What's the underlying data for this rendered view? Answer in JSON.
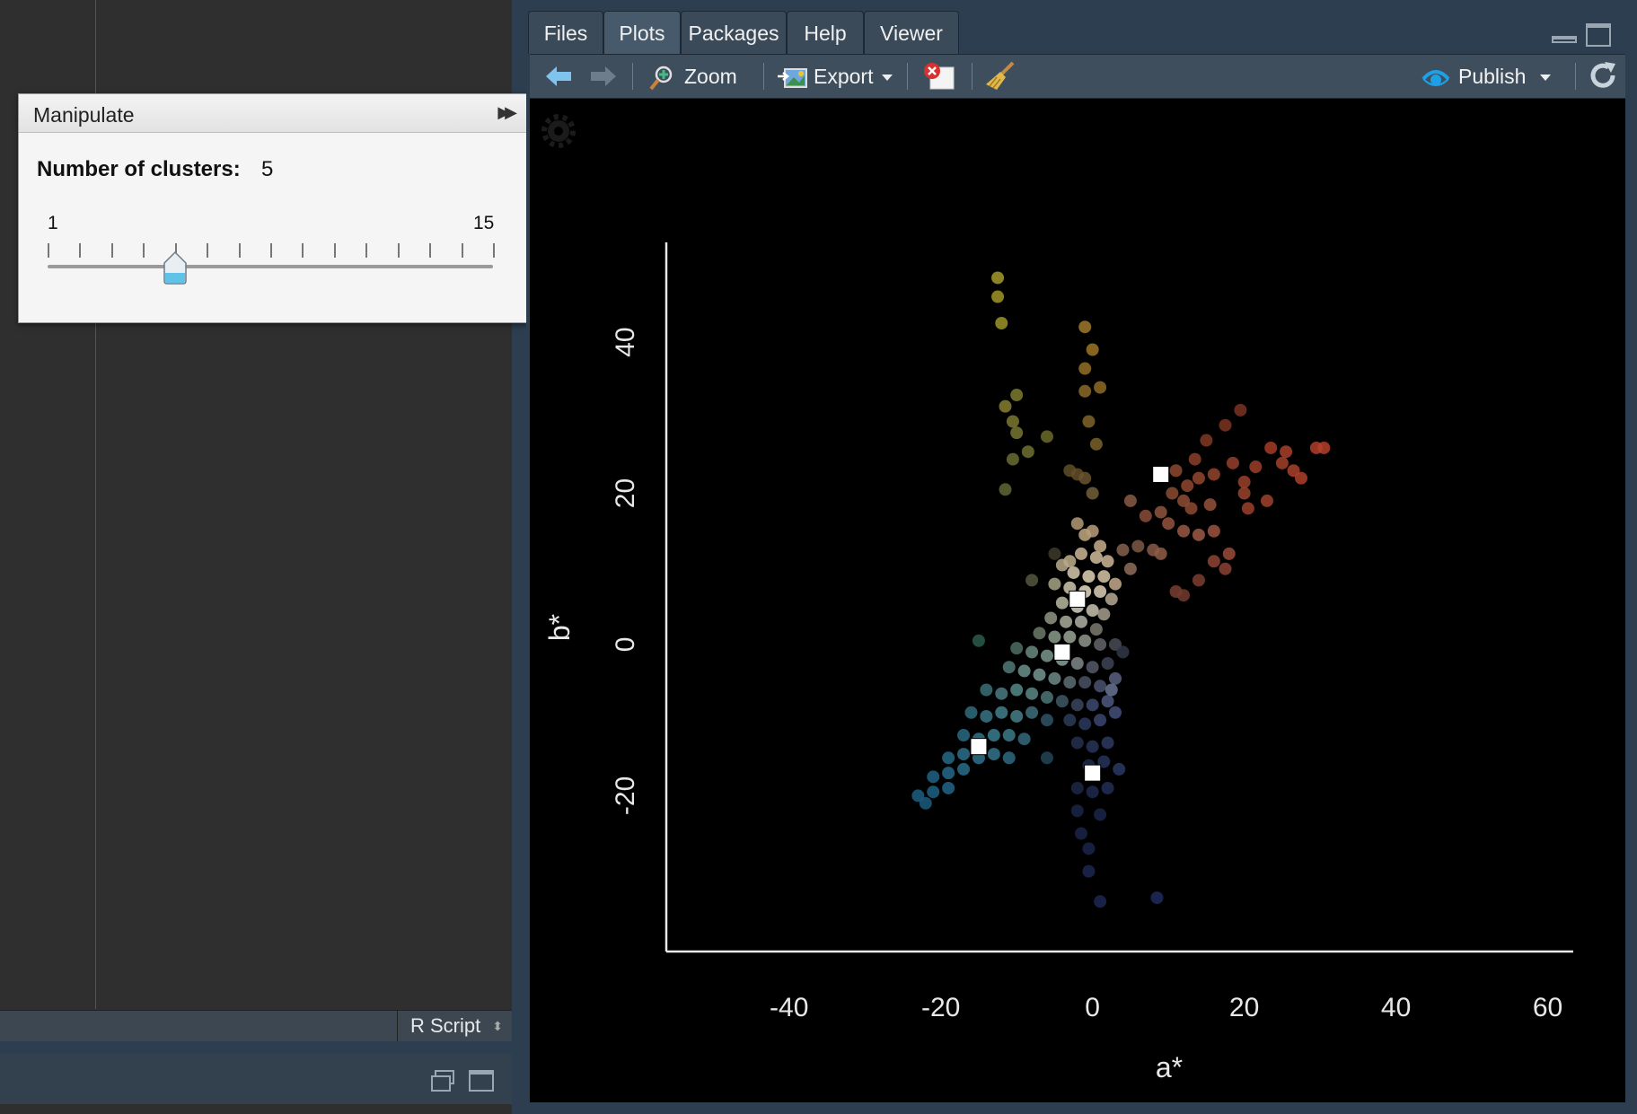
{
  "editor": {
    "file_type": "R Script"
  },
  "manipulate": {
    "title": "Manipulate",
    "control_label": "Number of clusters:",
    "control_value": "5",
    "slider_min": "1",
    "slider_max": "15",
    "slider_value": 5
  },
  "tabs": [
    {
      "label": "Files"
    },
    {
      "label": "Plots"
    },
    {
      "label": "Packages"
    },
    {
      "label": "Help"
    },
    {
      "label": "Viewer"
    }
  ],
  "active_tab": "Plots",
  "toolbar": {
    "zoom": "Zoom",
    "export": "Export",
    "publish": "Publish"
  },
  "colors": {
    "accent": "#1ea0e6",
    "plot_bg": "#000000"
  },
  "chart_data": {
    "type": "scatter",
    "xlabel": "a*",
    "ylabel": "b*",
    "xlim": [
      -55,
      61
    ],
    "ylim": [
      -38,
      52
    ],
    "x_ticks": [
      -40,
      -20,
      0,
      20,
      40,
      60
    ],
    "y_ticks": [
      -20,
      0,
      20,
      40
    ],
    "grid": false,
    "centers": [
      {
        "x": 9,
        "y": 22.5
      },
      {
        "x": -2,
        "y": 6
      },
      {
        "x": -4,
        "y": -1
      },
      {
        "x": -15,
        "y": -13.5
      },
      {
        "x": 0,
        "y": -17
      }
    ],
    "points": [
      {
        "x": -12.5,
        "y": 48.5,
        "c": "#a39a2a"
      },
      {
        "x": -12.5,
        "y": 46,
        "c": "#a09527"
      },
      {
        "x": -12,
        "y": 42.5,
        "c": "#9c9428"
      },
      {
        "x": -1,
        "y": 42,
        "c": "#a0782a"
      },
      {
        "x": 0,
        "y": 39,
        "c": "#9c7527"
      },
      {
        "x": -1,
        "y": 36.5,
        "c": "#957026"
      },
      {
        "x": 1,
        "y": 34,
        "c": "#8e6b27"
      },
      {
        "x": -1,
        "y": 33.5,
        "c": "#896a2a"
      },
      {
        "x": -0.5,
        "y": 29.5,
        "c": "#80652a"
      },
      {
        "x": 0.5,
        "y": 26.5,
        "c": "#7a6129"
      },
      {
        "x": -11.5,
        "y": 31.5,
        "c": "#857f30"
      },
      {
        "x": -10,
        "y": 33,
        "c": "#7d7b2e"
      },
      {
        "x": -10.5,
        "y": 29.5,
        "c": "#7a7830"
      },
      {
        "x": -10,
        "y": 28,
        "c": "#777531"
      },
      {
        "x": -6,
        "y": 27.5,
        "c": "#6c6a2c"
      },
      {
        "x": -8.5,
        "y": 25.5,
        "c": "#6e7132"
      },
      {
        "x": -10.5,
        "y": 24.5,
        "c": "#6a6d31"
      },
      {
        "x": -11.5,
        "y": 20.5,
        "c": "#626632"
      },
      {
        "x": -3,
        "y": 23,
        "c": "#5e4f27"
      },
      {
        "x": -2,
        "y": 22.5,
        "c": "#614f28"
      },
      {
        "x": -1,
        "y": 22,
        "c": "#6a5530"
      },
      {
        "x": 0,
        "y": 20,
        "c": "#74603a"
      },
      {
        "x": 19.5,
        "y": 31,
        "c": "#7a3322"
      },
      {
        "x": 17.5,
        "y": 29,
        "c": "#7d3421"
      },
      {
        "x": 15,
        "y": 27,
        "c": "#833a25"
      },
      {
        "x": 23.5,
        "y": 26,
        "c": "#a43b26"
      },
      {
        "x": 25.5,
        "y": 25.5,
        "c": "#a8402a"
      },
      {
        "x": 29.5,
        "y": 26,
        "c": "#b23e2c"
      },
      {
        "x": 30.5,
        "y": 26,
        "c": "#b5402d"
      },
      {
        "x": 26.5,
        "y": 23,
        "c": "#a9412b"
      },
      {
        "x": 27.5,
        "y": 22,
        "c": "#ad3f2b"
      },
      {
        "x": 25,
        "y": 24,
        "c": "#a43f29"
      },
      {
        "x": 21.5,
        "y": 23.5,
        "c": "#9c3f28"
      },
      {
        "x": 18.5,
        "y": 24,
        "c": "#963f2a"
      },
      {
        "x": 13.5,
        "y": 24.5,
        "c": "#8a3f2a"
      },
      {
        "x": 11,
        "y": 23,
        "c": "#8c4a2f"
      },
      {
        "x": 12.5,
        "y": 21,
        "c": "#90482f"
      },
      {
        "x": 14,
        "y": 22,
        "c": "#944730"
      },
      {
        "x": 16,
        "y": 22.5,
        "c": "#93442d"
      },
      {
        "x": 20,
        "y": 21.5,
        "c": "#9a412c"
      },
      {
        "x": 20,
        "y": 20,
        "c": "#9a432d"
      },
      {
        "x": 23,
        "y": 19,
        "c": "#a0432c"
      },
      {
        "x": 20.5,
        "y": 18,
        "c": "#9c412b"
      },
      {
        "x": 10.5,
        "y": 20,
        "c": "#8b4b33"
      },
      {
        "x": 12,
        "y": 19,
        "c": "#8f4d35"
      },
      {
        "x": 13,
        "y": 18,
        "c": "#8c4a34"
      },
      {
        "x": 15.5,
        "y": 18.5,
        "c": "#97513a"
      },
      {
        "x": 5,
        "y": 19,
        "c": "#8a5a45"
      },
      {
        "x": 7,
        "y": 17,
        "c": "#8a4e39"
      },
      {
        "x": 9,
        "y": 17.5,
        "c": "#8e553f"
      },
      {
        "x": 10,
        "y": 16,
        "c": "#93523e"
      },
      {
        "x": 12,
        "y": 15,
        "c": "#9a5843"
      },
      {
        "x": 14,
        "y": 14.5,
        "c": "#9d5b44"
      },
      {
        "x": 16,
        "y": 15,
        "c": "#a0543f"
      },
      {
        "x": 18,
        "y": 12,
        "c": "#9a4b39"
      },
      {
        "x": 16,
        "y": 11,
        "c": "#8e4434"
      },
      {
        "x": 17.5,
        "y": 10,
        "c": "#8a4232"
      },
      {
        "x": 14,
        "y": 8.5,
        "c": "#7c3e30"
      },
      {
        "x": 11,
        "y": 7,
        "c": "#7a3e31"
      },
      {
        "x": 12,
        "y": 6.5,
        "c": "#733a2e"
      },
      {
        "x": 6,
        "y": 13,
        "c": "#7e5847"
      },
      {
        "x": 8,
        "y": 12.5,
        "c": "#8a5a46"
      },
      {
        "x": 9,
        "y": 12,
        "c": "#8e5d48"
      },
      {
        "x": 4,
        "y": 12.5,
        "c": "#86624f"
      },
      {
        "x": 5,
        "y": 10,
        "c": "#8e6e5b"
      },
      {
        "x": -2,
        "y": 16,
        "c": "#b49a73"
      },
      {
        "x": -1,
        "y": 14.5,
        "c": "#c1a883"
      },
      {
        "x": 0,
        "y": 15,
        "c": "#b89f7a"
      },
      {
        "x": 1,
        "y": 13,
        "c": "#c7ae8c"
      },
      {
        "x": -1.5,
        "y": 12,
        "c": "#cbb595"
      },
      {
        "x": 0.5,
        "y": 11.5,
        "c": "#d2bd9e"
      },
      {
        "x": 2,
        "y": 11,
        "c": "#cfb596"
      },
      {
        "x": -3,
        "y": 11,
        "c": "#c0b08c"
      },
      {
        "x": -5,
        "y": 12,
        "c": "#3d3a2c"
      },
      {
        "x": -4,
        "y": 10.5,
        "c": "#b7aa8a"
      },
      {
        "x": -2.5,
        "y": 9.5,
        "c": "#d6c9ad"
      },
      {
        "x": -0.5,
        "y": 9,
        "c": "#e1d2b6"
      },
      {
        "x": 1.5,
        "y": 9,
        "c": "#d9c6a9"
      },
      {
        "x": 3,
        "y": 8,
        "c": "#c4aa8e"
      },
      {
        "x": -8,
        "y": 8.5,
        "c": "#56573f"
      },
      {
        "x": -5,
        "y": 8,
        "c": "#a6a486"
      },
      {
        "x": -3,
        "y": 7.5,
        "c": "#cfc8ae"
      },
      {
        "x": -1,
        "y": 7,
        "c": "#e6dcc4"
      },
      {
        "x": 1,
        "y": 7,
        "c": "#ddd0b7"
      },
      {
        "x": 2.5,
        "y": 6,
        "c": "#b9a994"
      },
      {
        "x": -4,
        "y": 5.5,
        "c": "#b8b8a0"
      },
      {
        "x": -2,
        "y": 5,
        "c": "#d4d1bf"
      },
      {
        "x": 0,
        "y": 4.5,
        "c": "#c9c2b0"
      },
      {
        "x": 1.5,
        "y": 4,
        "c": "#a79e8e"
      },
      {
        "x": -5.5,
        "y": 3.5,
        "c": "#8f9582"
      },
      {
        "x": -3.5,
        "y": 3,
        "c": "#a9ab9a"
      },
      {
        "x": -1.5,
        "y": 3,
        "c": "#b3b2a6"
      },
      {
        "x": 0.5,
        "y": 2,
        "c": "#7c7a70"
      },
      {
        "x": -7,
        "y": 1.5,
        "c": "#6c7b6a"
      },
      {
        "x": -5,
        "y": 1,
        "c": "#8b9b8d"
      },
      {
        "x": -3,
        "y": 1,
        "c": "#9ba597"
      },
      {
        "x": -1,
        "y": 0.5,
        "c": "#8f958c"
      },
      {
        "x": 1,
        "y": 0,
        "c": "#63656a"
      },
      {
        "x": 3,
        "y": 0,
        "c": "#4a4c57"
      },
      {
        "x": -15,
        "y": 0.5,
        "c": "#2c5a4d"
      },
      {
        "x": -10,
        "y": -0.5,
        "c": "#4d6e62"
      },
      {
        "x": -8,
        "y": -1,
        "c": "#6a8a7e"
      },
      {
        "x": -6,
        "y": -1.5,
        "c": "#7a978e"
      },
      {
        "x": -4,
        "y": -2,
        "c": "#8aa09a"
      },
      {
        "x": -2,
        "y": -2.5,
        "c": "#7e8a8a"
      },
      {
        "x": 0,
        "y": -3,
        "c": "#555a68"
      },
      {
        "x": 2,
        "y": -2.5,
        "c": "#3e4458"
      },
      {
        "x": 4,
        "y": -1,
        "c": "#333848"
      },
      {
        "x": -11,
        "y": -3,
        "c": "#4f7a78"
      },
      {
        "x": -9,
        "y": -3.5,
        "c": "#6a908c"
      },
      {
        "x": -7,
        "y": -4,
        "c": "#76968f"
      },
      {
        "x": -5,
        "y": -4.5,
        "c": "#6f8a88"
      },
      {
        "x": -3,
        "y": -5,
        "c": "#5d6e74"
      },
      {
        "x": -1,
        "y": -5,
        "c": "#4a5366"
      },
      {
        "x": 1,
        "y": -5.5,
        "c": "#4a5270"
      },
      {
        "x": 3,
        "y": -4.5,
        "c": "#5a6280"
      },
      {
        "x": -14,
        "y": -6,
        "c": "#3b7078"
      },
      {
        "x": -12,
        "y": -6.5,
        "c": "#4b7b82"
      },
      {
        "x": -10,
        "y": -6,
        "c": "#558a88"
      },
      {
        "x": -8,
        "y": -6.5,
        "c": "#5b8886"
      },
      {
        "x": -6,
        "y": -7,
        "c": "#4f7677"
      },
      {
        "x": -4,
        "y": -7.5,
        "c": "#3c5965"
      },
      {
        "x": -2,
        "y": -8,
        "c": "#3a4560"
      },
      {
        "x": 0,
        "y": -8,
        "c": "#3c4a6e"
      },
      {
        "x": 2,
        "y": -7.5,
        "c": "#4e5a80"
      },
      {
        "x": 2.5,
        "y": -6,
        "c": "#6a7494"
      },
      {
        "x": -16,
        "y": -9,
        "c": "#2e6d7e"
      },
      {
        "x": -14,
        "y": -9.5,
        "c": "#3a7686"
      },
      {
        "x": -12,
        "y": -9,
        "c": "#42808c"
      },
      {
        "x": -10,
        "y": -9.5,
        "c": "#47808a"
      },
      {
        "x": -8,
        "y": -9,
        "c": "#3f6e7a"
      },
      {
        "x": -6,
        "y": -10,
        "c": "#2f5466"
      },
      {
        "x": -3,
        "y": -10,
        "c": "#2c3c58"
      },
      {
        "x": -1,
        "y": -10.5,
        "c": "#2d3a5e"
      },
      {
        "x": 1,
        "y": -10,
        "c": "#3a4670"
      },
      {
        "x": 3,
        "y": -9,
        "c": "#44507a"
      },
      {
        "x": -17,
        "y": -12,
        "c": "#2a6a80"
      },
      {
        "x": -15,
        "y": -12.5,
        "c": "#317488"
      },
      {
        "x": -13,
        "y": -12,
        "c": "#3a7c8e"
      },
      {
        "x": -11,
        "y": -12,
        "c": "#3c7b8a"
      },
      {
        "x": -9,
        "y": -12.5,
        "c": "#35697c"
      },
      {
        "x": -6,
        "y": -15,
        "c": "#234458"
      },
      {
        "x": -2,
        "y": -13,
        "c": "#24304f"
      },
      {
        "x": 0,
        "y": -13.5,
        "c": "#283458"
      },
      {
        "x": 2,
        "y": -13,
        "c": "#2e3a62"
      },
      {
        "x": -19,
        "y": -15,
        "c": "#256986"
      },
      {
        "x": -17,
        "y": -14.5,
        "c": "#2c6f8a"
      },
      {
        "x": -15,
        "y": -15,
        "c": "#2f728c"
      },
      {
        "x": -13,
        "y": -14.5,
        "c": "#34748c"
      },
      {
        "x": -11,
        "y": -15,
        "c": "#2e6a82"
      },
      {
        "x": -21,
        "y": -17.5,
        "c": "#1f6384"
      },
      {
        "x": -19,
        "y": -17,
        "c": "#246888"
      },
      {
        "x": -17,
        "y": -16.5,
        "c": "#286c8a"
      },
      {
        "x": -23,
        "y": -20,
        "c": "#1c5e80"
      },
      {
        "x": -21,
        "y": -19.5,
        "c": "#1f6284"
      },
      {
        "x": -19,
        "y": -19,
        "c": "#226586"
      },
      {
        "x": -22,
        "y": -21,
        "c": "#1a5c7e"
      },
      {
        "x": -0.5,
        "y": -16,
        "c": "#202c4c"
      },
      {
        "x": 1.5,
        "y": -15.5,
        "c": "#26325a"
      },
      {
        "x": 3.5,
        "y": -16.5,
        "c": "#2b3864"
      },
      {
        "x": -2,
        "y": -19,
        "c": "#1d2848"
      },
      {
        "x": 0,
        "y": -19.5,
        "c": "#1f2a4e"
      },
      {
        "x": 2,
        "y": -19,
        "c": "#222e56"
      },
      {
        "x": -2,
        "y": -22,
        "c": "#1a2446"
      },
      {
        "x": 1,
        "y": -22.5,
        "c": "#1c264a"
      },
      {
        "x": -1.5,
        "y": -25,
        "c": "#1a2448"
      },
      {
        "x": -0.5,
        "y": -27,
        "c": "#1b254c"
      },
      {
        "x": -0.5,
        "y": -30,
        "c": "#1c2650"
      },
      {
        "x": 1,
        "y": -34,
        "c": "#1d2754"
      },
      {
        "x": 8.5,
        "y": -33.5,
        "c": "#202a5c"
      }
    ]
  }
}
